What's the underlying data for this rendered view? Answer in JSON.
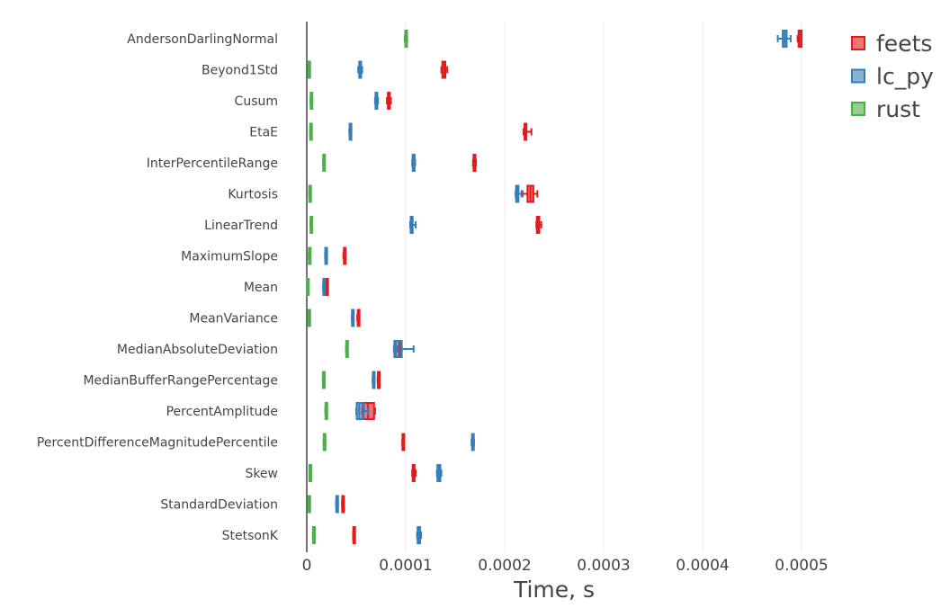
{
  "chart_data": {
    "type": "box",
    "orientation": "horizontal",
    "xlabel": "Time, s",
    "value_unit_note": "box stats listed as [min, q1, median, q3, max] in microseconds",
    "xlim": [
      0,
      0.00053
    ],
    "x_ticks": [
      0,
      0.0001,
      0.0002,
      0.0003,
      0.0004,
      0.0005
    ],
    "x_tick_labels": [
      "0",
      "0.0001",
      "0.0002",
      "0.0003",
      "0.0004",
      "0.0005"
    ],
    "grid": true,
    "legend_position": "top-right",
    "categories": [
      "AndersonDarlingNormal",
      "Beyond1Std",
      "Cusum",
      "EtaE",
      "InterPercentileRange",
      "Kurtosis",
      "LinearTrend",
      "MaximumSlope",
      "Mean",
      "MeanVariance",
      "MedianAbsoluteDeviation",
      "MedianBufferRangePercentage",
      "PercentAmplitude",
      "PercentDifferenceMagnitudePercentile",
      "Skew",
      "StandardDeviation",
      "StetsonK"
    ],
    "series": [
      {
        "name": "feets",
        "color": "#e41a1c",
        "values": [
          [
            496,
            497,
            498,
            500,
            500
          ],
          [
            136,
            137,
            139,
            140,
            142
          ],
          [
            81,
            82,
            83,
            84,
            85
          ],
          [
            219,
            220,
            221,
            222,
            227
          ],
          [
            168,
            168.5,
            169.5,
            170.5,
            171
          ],
          [
            218,
            223,
            226,
            229,
            233
          ],
          [
            232,
            232.5,
            234,
            235,
            237
          ],
          [
            37,
            37.5,
            38,
            38.5,
            39
          ],
          [
            19.5,
            19.7,
            20,
            20.3,
            20.5
          ],
          [
            51,
            51.5,
            52,
            52.8,
            53.2
          ],
          [
            92,
            93,
            94,
            95,
            96
          ],
          [
            71.5,
            71.8,
            72,
            72.3,
            72.5
          ],
          [
            56,
            56.5,
            62,
            68,
            69
          ],
          [
            96.5,
            96.7,
            97,
            97.3,
            97.5
          ],
          [
            106.5,
            107,
            108,
            109,
            110
          ],
          [
            35.6,
            35.8,
            36,
            36.3,
            36.5
          ],
          [
            46.8,
            47,
            47.3,
            47.6,
            47.8
          ]
        ]
      },
      {
        "name": "lc_py",
        "color": "#377eb8",
        "values": [
          [
            476,
            481,
            483,
            485,
            489
          ],
          [
            52,
            53,
            54,
            55,
            56
          ],
          [
            69,
            69.5,
            70,
            71,
            72
          ],
          [
            43,
            43.3,
            43.6,
            44,
            44.2
          ],
          [
            106.5,
            107,
            108,
            109,
            109.5
          ],
          [
            211,
            211.5,
            213,
            214,
            217
          ],
          [
            104.5,
            105,
            106,
            107,
            110
          ],
          [
            18.5,
            18.7,
            19,
            19.3,
            19.5
          ],
          [
            16.5,
            16.7,
            17,
            17.3,
            17.5
          ],
          [
            45.5,
            45.7,
            46,
            46.3,
            46.5
          ],
          [
            88,
            88.5,
            90,
            96,
            108
          ],
          [
            66.5,
            66.8,
            67,
            67.5,
            68
          ],
          [
            50,
            50.5,
            53,
            57.5,
            62
          ],
          [
            166.5,
            167,
            167.7,
            168.5,
            169
          ],
          [
            131.5,
            132,
            133.6,
            135,
            136
          ],
          [
            29.6,
            29.8,
            30,
            30.3,
            30.5
          ],
          [
            111.5,
            112,
            113,
            114.5,
            115.5
          ]
        ]
      },
      {
        "name": "rust",
        "color": "#4daf4a",
        "values": [
          [
            99,
            99.5,
            100,
            101,
            101.5
          ],
          [
            1.5,
            1.6,
            1.8,
            2,
            2.1
          ],
          [
            3.8,
            3.9,
            4,
            4.1,
            4.2
          ],
          [
            3.3,
            3.4,
            3.6,
            3.8,
            3.9
          ],
          [
            16.5,
            16.6,
            16.8,
            17,
            17.2
          ],
          [
            2.4,
            2.5,
            2.7,
            2.9,
            3
          ],
          [
            3.7,
            3.8,
            4,
            4.2,
            4.3
          ],
          [
            2,
            2.1,
            2.3,
            2.5,
            2.6
          ],
          [
            0.2,
            0.3,
            0.5,
            0.7,
            0.8
          ],
          [
            1.5,
            1.6,
            1.8,
            2,
            2.1
          ],
          [
            39.7,
            39.8,
            40,
            40.2,
            40.3
          ],
          [
            16.2,
            16.3,
            16.4,
            16.6,
            16.7
          ],
          [
            18.8,
            18.9,
            19,
            19.2,
            19.3
          ],
          [
            17,
            17.1,
            17.3,
            17.5,
            17.6
          ],
          [
            2.6,
            2.7,
            2.8,
            3,
            3.1
          ],
          [
            1.5,
            1.6,
            1.8,
            2,
            2.1
          ],
          [
            6.2,
            6.3,
            6.4,
            6.6,
            6.7
          ]
        ]
      }
    ]
  }
}
